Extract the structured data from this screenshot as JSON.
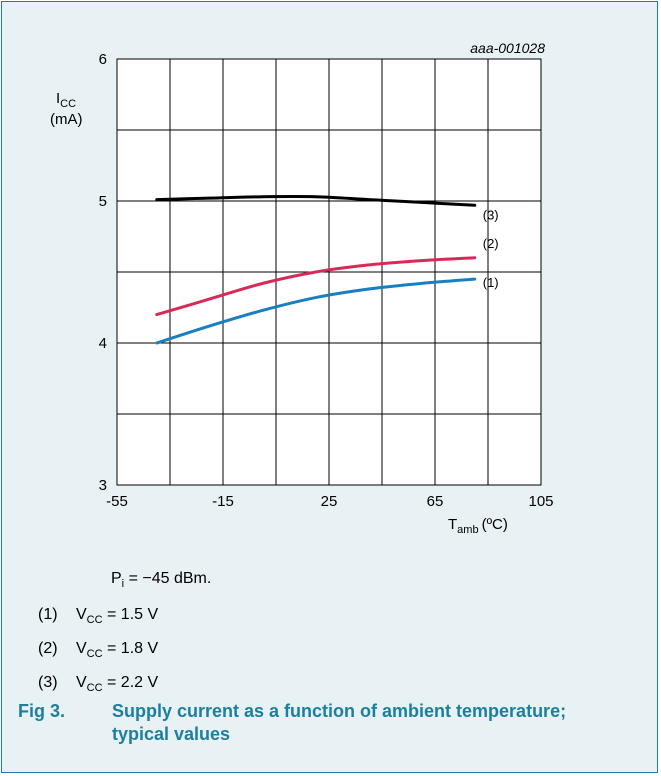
{
  "chart_data": {
    "type": "line",
    "id_label": "aaa-001028",
    "ylabel": {
      "main": "I",
      "sub": "CC",
      "unit": "(mA)"
    },
    "xlabel": {
      "main": "T",
      "sub": "amb",
      "unit": "(ºC)"
    },
    "xlim": [
      -55,
      105
    ],
    "ylim": [
      3,
      6
    ],
    "x_ticks": [
      "-55",
      "-15",
      "25",
      "65",
      "105"
    ],
    "x_tick_values": [
      -55,
      -15,
      25,
      65,
      105
    ],
    "y_ticks": [
      "3",
      "4",
      "5",
      "6"
    ],
    "y_tick_values": [
      3,
      4,
      5,
      6
    ],
    "grid": true,
    "series": [
      {
        "name": "(1)",
        "color": "#1a7fc0",
        "x": [
          -40,
          -20,
          0,
          20,
          40,
          60,
          80
        ],
        "y": [
          4.0,
          4.12,
          4.23,
          4.32,
          4.38,
          4.42,
          4.45
        ]
      },
      {
        "name": "(2)",
        "color": "#d82a5a",
        "x": [
          -40,
          -20,
          0,
          20,
          40,
          60,
          80
        ],
        "y": [
          4.2,
          4.31,
          4.42,
          4.5,
          4.55,
          4.58,
          4.6
        ]
      },
      {
        "name": "(3)",
        "color": "#000000",
        "x": [
          -40,
          -20,
          0,
          20,
          40,
          60,
          80
        ],
        "y": [
          5.01,
          5.02,
          5.03,
          5.03,
          5.01,
          4.99,
          4.97
        ]
      }
    ]
  },
  "notes": {
    "condition": {
      "main": "P",
      "sub": "i",
      "rest": " = −45 dBm."
    },
    "items": [
      {
        "num": "(1)",
        "main": "V",
        "sub": "CC",
        "rest": " = 1.5 V"
      },
      {
        "num": "(2)",
        "main": "V",
        "sub": "CC",
        "rest": " = 1.8 V"
      },
      {
        "num": "(3)",
        "main": "V",
        "sub": "CC",
        "rest": " = 2.2 V"
      }
    ]
  },
  "caption": {
    "fig": "Fig 3.",
    "title": "Supply current as a function of ambient temperature; typical values"
  },
  "colors": {
    "frame": "#1b7fa0",
    "background": "#e8f2f5",
    "caption": "#1b7fa0"
  }
}
